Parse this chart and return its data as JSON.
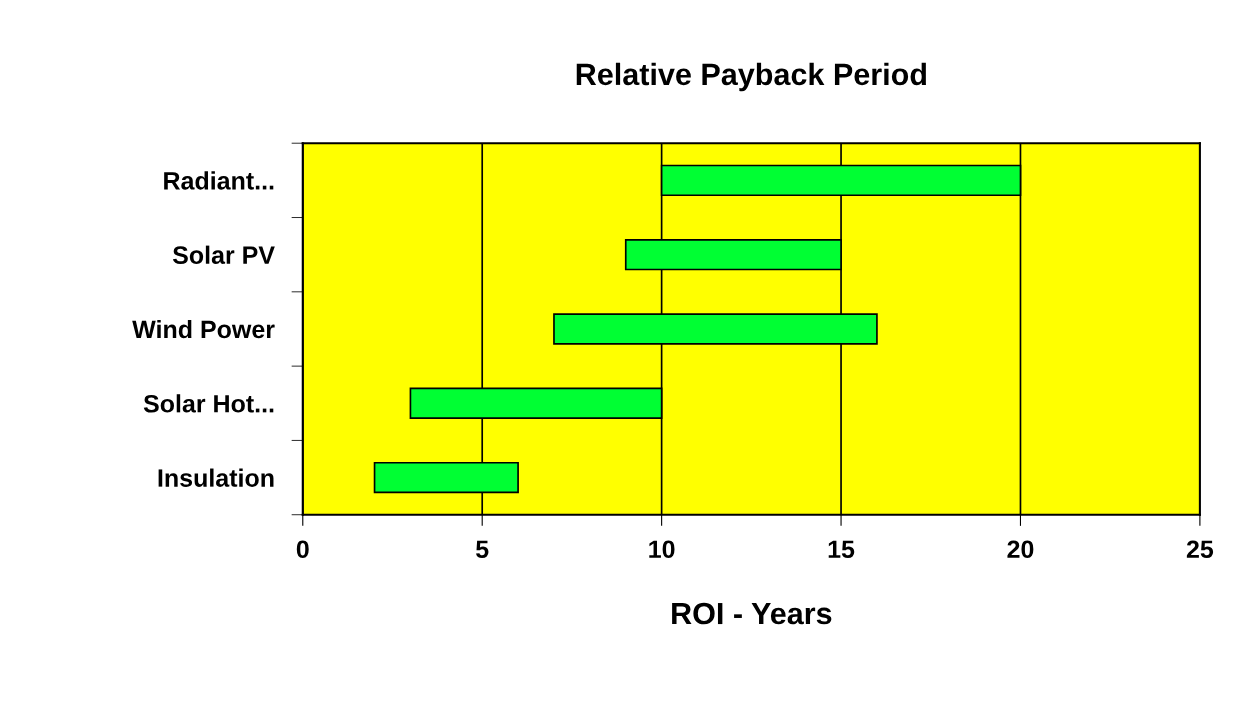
{
  "chart_data": {
    "type": "bar",
    "orientation": "horizontal",
    "title": "Relative Payback Period",
    "xlabel": "ROI - Years",
    "categories": [
      "Radiant...",
      "Solar PV",
      "Wind Power",
      "Solar Hot...",
      "Insulation"
    ],
    "base": [
      10,
      9,
      7,
      3,
      2
    ],
    "values": [
      10,
      6,
      9,
      7,
      4
    ],
    "color": "#00ff33",
    "xlim": [
      0,
      25
    ],
    "xticks": [
      0,
      5,
      10,
      15,
      20,
      25
    ],
    "grid": "x",
    "legend": false
  }
}
